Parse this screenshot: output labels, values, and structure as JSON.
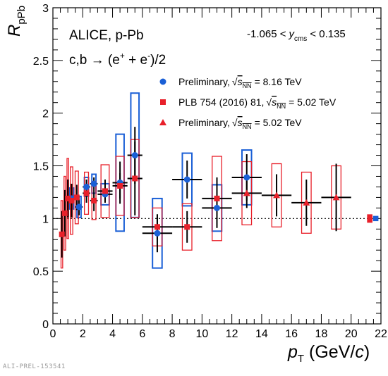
{
  "footer_label": "ALI-PREL-153541",
  "chart_data": {
    "type": "scatter",
    "xlabel": "p_T (GeV/c)",
    "ylabel": "R_pPb",
    "xlim": [
      0,
      22
    ],
    "ylim": [
      0,
      3
    ],
    "x_ticks": [
      0,
      2,
      4,
      6,
      8,
      10,
      12,
      14,
      16,
      18,
      20,
      22
    ],
    "y_ticks": [
      0,
      0.5,
      1,
      1.5,
      2,
      2.5,
      3
    ],
    "x_tick_labels": [
      "0",
      "2",
      "4",
      "6",
      "8",
      "10",
      "12",
      "14",
      "16",
      "18",
      "20",
      "22"
    ],
    "y_tick_labels": [
      "0",
      "0.5",
      "1",
      "1.5",
      "2",
      "2.5",
      "3"
    ],
    "annotations": {
      "system": "ALICE, p-Pb",
      "rapidity_left": "-1.065 <",
      "rapidity_var": "y",
      "rapidity_sub": "cms",
      "rapidity_right": "< 0.135",
      "process_base": "c,b → (e",
      "process_plus": "+",
      "process_mid": " + e",
      "process_minus": "-",
      "process_end": ")/2"
    },
    "reference_line": {
      "y": 1,
      "style": "dotted"
    },
    "legend_placement": "top-right",
    "series": [
      {
        "name": "Preliminary, √s_NN = 8.16 TeV",
        "legend_prefix": "Preliminary,",
        "legend_energy": "= 8.16 TeV",
        "marker": "circle",
        "color": "#1a5fd6",
        "points": [
          {
            "x": 1.25,
            "xerr": 0.25,
            "y": 1.19,
            "stat": 0.1,
            "sys": 0.1
          },
          {
            "x": 1.75,
            "xerr": 0.25,
            "y": 1.11,
            "stat": 0.08,
            "sys": 0.1
          },
          {
            "x": 2.25,
            "xerr": 0.25,
            "y": 1.3,
            "stat": 0.07,
            "sys": 0.09
          },
          {
            "x": 2.75,
            "xerr": 0.25,
            "y": 1.33,
            "stat": 0.06,
            "sys": 0.09
          },
          {
            "x": 3.5,
            "xerr": 0.5,
            "y": 1.23,
            "stat": 0.06,
            "sys": 0.1
          },
          {
            "x": 4.5,
            "xerr": 0.5,
            "y": 1.34,
            "stat": 0.2,
            "sys": 0.46
          },
          {
            "x": 5.5,
            "xerr": 0.5,
            "y": 1.6,
            "stat": 0.27,
            "sys": 0.59
          },
          {
            "x": 7.0,
            "xerr": 1.0,
            "y": 0.86,
            "stat": 0.18,
            "sys": 0.33
          },
          {
            "x": 9.0,
            "xerr": 1.0,
            "y": 1.37,
            "stat": 0.18,
            "sys": 0.25
          },
          {
            "x": 11.0,
            "xerr": 1.0,
            "y": 1.1,
            "stat": 0.19,
            "sys": 0.22
          },
          {
            "x": 13.0,
            "xerr": 1.0,
            "y": 1.39,
            "stat": 0.22,
            "sys": 0.26
          }
        ]
      },
      {
        "name": "PLB 754 (2016) 81, √s_NN = 5.02 TeV",
        "legend_prefix": "PLB 754 (2016) 81,",
        "legend_energy": "= 5.02 TeV",
        "marker": "square",
        "color": "#e8202a",
        "points": [
          {
            "x": 0.6,
            "xerr": 0.1,
            "y": 0.85,
            "stat": 0.22,
            "sys": 0.32
          },
          {
            "x": 0.8,
            "xerr": 0.1,
            "y": 1.05,
            "stat": 0.22,
            "sys": 0.35
          },
          {
            "x": 1.0,
            "xerr": 0.1,
            "y": 1.19,
            "stat": 0.18,
            "sys": 0.38
          },
          {
            "x": 1.25,
            "xerr": 0.15,
            "y": 1.17,
            "stat": 0.16,
            "sys": 0.32
          },
          {
            "x": 1.6,
            "xerr": 0.2,
            "y": 1.2,
            "stat": 0.12,
            "sys": 0.25
          },
          {
            "x": 2.25,
            "xerr": 0.25,
            "y": 1.24,
            "stat": 0.09,
            "sys": 0.2
          },
          {
            "x": 2.75,
            "xerr": 0.25,
            "y": 1.17,
            "stat": 0.1,
            "sys": 0.18
          },
          {
            "x": 3.5,
            "xerr": 0.5,
            "y": 1.26,
            "stat": 0.11,
            "sys": 0.25
          },
          {
            "x": 4.5,
            "xerr": 0.5,
            "y": 1.31,
            "stat": 0.12,
            "sys": 0.28
          },
          {
            "x": 5.5,
            "xerr": 0.5,
            "y": 1.38,
            "stat": 0.35,
            "sys": 0.37
          },
          {
            "x": 7.0,
            "xerr": 1.0,
            "y": 0.92,
            "stat": 0.12,
            "sys": 0.18
          },
          {
            "x": 9.0,
            "xerr": 1.0,
            "y": 0.92,
            "stat": 0.15,
            "sys": 0.22
          },
          {
            "x": 11.0,
            "xerr": 1.0,
            "y": 1.19,
            "stat": 0.2,
            "sys": 0.4
          }
        ]
      },
      {
        "name": "Preliminary, √s_NN = 5.02 TeV",
        "legend_prefix": "Preliminary,",
        "legend_energy": "= 5.02 TeV",
        "marker": "triangle",
        "color": "#e8202a",
        "points": [
          {
            "x": 13.0,
            "xerr": 1.0,
            "y": 1.24,
            "stat": 0.14,
            "sys": 0.3
          },
          {
            "x": 15.0,
            "xerr": 1.0,
            "y": 1.22,
            "stat": 0.2,
            "sys": 0.3
          },
          {
            "x": 17.0,
            "xerr": 1.0,
            "y": 1.15,
            "stat": 0.22,
            "sys": 0.29
          },
          {
            "x": 19.0,
            "xerr": 1.0,
            "y": 1.2,
            "stat": 0.32,
            "sys": 0.3
          }
        ]
      }
    ],
    "normalization_boxes": [
      {
        "color": "#e8202a",
        "x": 21.25,
        "y": 1.0,
        "sys": 0.04
      },
      {
        "color": "#1a5fd6",
        "x": 21.65,
        "y": 1.0,
        "sys": 0.025
      }
    ]
  }
}
